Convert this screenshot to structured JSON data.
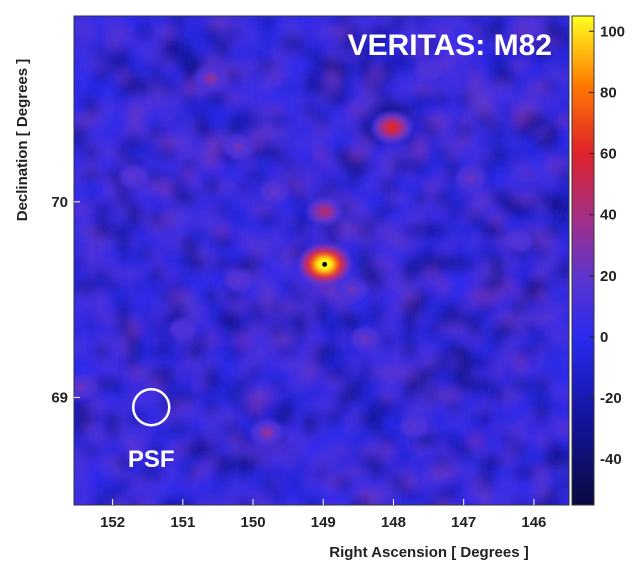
{
  "chart_data": {
    "type": "heatmap",
    "title": "VERITAS: M82",
    "xlabel": "Right Ascension [ Degrees ]",
    "ylabel": "Declination [ Degrees ]",
    "x_ticks": [
      152,
      151,
      150,
      149,
      148,
      147,
      146
    ],
    "y_ticks": [
      69,
      70
    ],
    "xlim": [
      152.55,
      145.5
    ],
    "ylim": [
      68.45,
      70.95
    ],
    "colorbar": {
      "ticks": [
        100,
        80,
        60,
        40,
        20,
        0,
        -20,
        -40
      ],
      "range": [
        -55,
        105
      ]
    },
    "annotations": {
      "psf_label": "PSF",
      "psf_center": [
        151.45,
        68.95
      ],
      "source_marker": [
        148.98,
        69.68
      ]
    },
    "hotspots": [
      {
        "ra": 148.98,
        "dec": 69.68,
        "value": 105
      },
      {
        "ra": 148.02,
        "dec": 70.38,
        "value": 58
      },
      {
        "ra": 148.98,
        "dec": 69.95,
        "value": 42
      },
      {
        "ra": 150.6,
        "dec": 70.63,
        "value": 30
      },
      {
        "ra": 150.2,
        "dec": 70.28,
        "value": 25
      },
      {
        "ra": 149.7,
        "dec": 70.05,
        "value": 20
      },
      {
        "ra": 151.7,
        "dec": 70.13,
        "value": 18
      },
      {
        "ra": 146.9,
        "dec": 70.12,
        "value": 22
      },
      {
        "ra": 148.4,
        "dec": 69.3,
        "value": 22
      },
      {
        "ra": 149.8,
        "dec": 68.82,
        "value": 30
      },
      {
        "ra": 152.45,
        "dec": 69.05,
        "value": 22
      },
      {
        "ra": 150.2,
        "dec": 69.6,
        "value": 16
      },
      {
        "ra": 147.7,
        "dec": 68.85,
        "value": 14
      },
      {
        "ra": 146.2,
        "dec": 69.8,
        "value": 15
      },
      {
        "ra": 147.5,
        "dec": 70.67,
        "value": 12
      },
      {
        "ra": 151.0,
        "dec": 69.35,
        "value": 10
      },
      {
        "ra": 148.6,
        "dec": 69.55,
        "value": 24
      }
    ],
    "grid": false
  }
}
